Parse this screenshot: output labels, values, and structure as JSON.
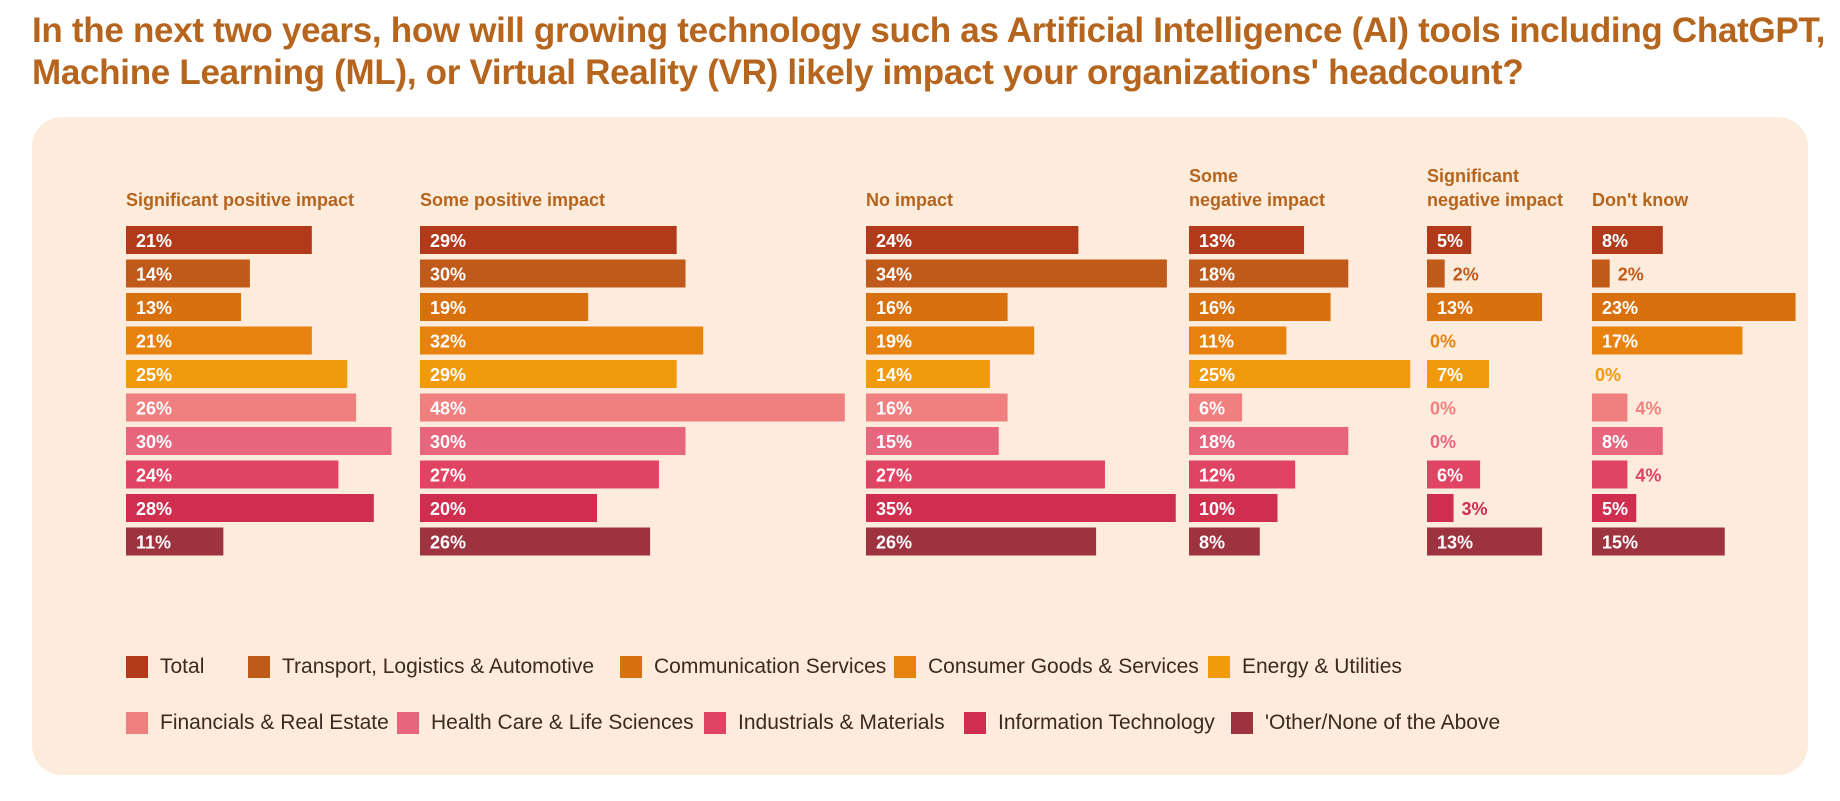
{
  "title": {
    "line1": "In the next two years, how will growing technology such as Artificial Intelligence (AI) tools including ChatGPT,",
    "line2": "Machine Learning (ML), or Virtual Reality (VR) likely impact your organizations' headcount?"
  },
  "colors": {
    "title": "#b5651d",
    "panel_bg": "#fdebdc",
    "header_text": "#b5651d",
    "series": [
      "#b23a1b",
      "#c05a1a",
      "#d9700e",
      "#e8820f",
      "#f09a0c",
      "#f08080",
      "#e8657e",
      "#e04462",
      "#cf2e4e",
      "#9e3340"
    ]
  },
  "chart_data": {
    "type": "bar",
    "orientation": "horizontal",
    "title": "In the next two years, how will growing technology such as Artificial Intelligence (AI) tools including ChatGPT, Machine Learning (ML), or Virtual Reality (VR) likely impact your organizations' headcount?",
    "unit": "%",
    "groups": [
      "Total",
      "Transport, Logistics & Automotive",
      "Communication Services",
      "Consumer Goods & Services",
      "Energy & Utilities",
      "Financials & Real Estate",
      "Health Care & Life Sciences",
      "Industrials & Materials",
      "Information Technology",
      "'Other/None of the Above"
    ],
    "panels": [
      {
        "header": [
          "Significant positive impact"
        ],
        "values": [
          21,
          14,
          13,
          21,
          25,
          26,
          30,
          24,
          28,
          11
        ]
      },
      {
        "header": [
          "Some positive impact"
        ],
        "values": [
          29,
          30,
          19,
          32,
          29,
          48,
          30,
          27,
          20,
          26
        ]
      },
      {
        "header": [
          "No impact"
        ],
        "values": [
          24,
          34,
          16,
          19,
          14,
          16,
          15,
          27,
          35,
          26
        ]
      },
      {
        "header": [
          "Some",
          "negative impact"
        ],
        "values": [
          13,
          18,
          16,
          11,
          25,
          6,
          18,
          12,
          10,
          8
        ]
      },
      {
        "header": [
          "Significant",
          "negative impact"
        ],
        "values": [
          5,
          2,
          13,
          0,
          7,
          0,
          0,
          6,
          3,
          13
        ]
      },
      {
        "header": [
          "Don't know"
        ],
        "values": [
          8,
          2,
          23,
          17,
          0,
          4,
          8,
          4,
          5,
          15
        ]
      }
    ],
    "legend": [
      "Total",
      "Transport, Logistics & Automotive",
      "Communication Services",
      "Consumer Goods & Services",
      "Energy & Utilities",
      "Financials & Real Estate",
      "Health Care & Life Sciences",
      "Industrials & Materials",
      "Information Technology",
      "'Other/None of the Above"
    ],
    "legend_position": "bottom"
  }
}
